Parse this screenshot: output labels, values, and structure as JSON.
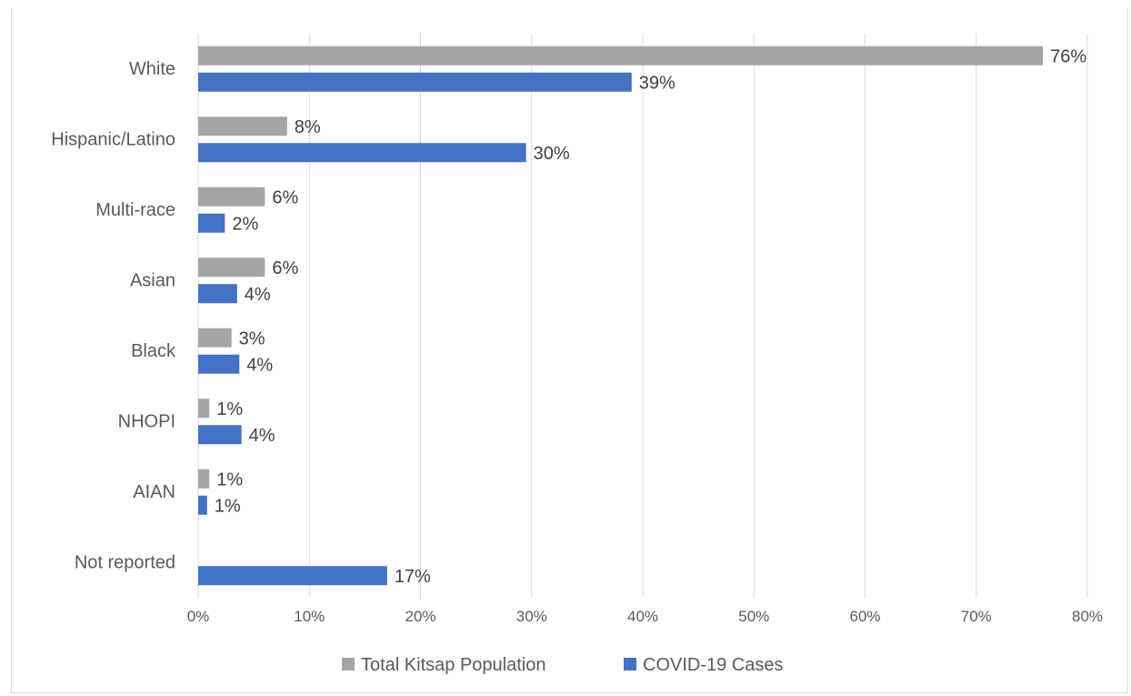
{
  "chart_data": {
    "type": "bar",
    "orientation": "horizontal",
    "categories": [
      "White",
      "Hispanic/Latino",
      "Multi-race",
      "Asian",
      "Black",
      "NHOPI",
      "AIAN",
      "Not reported"
    ],
    "series": [
      {
        "name": "Total Kitsap Population",
        "color": "#a5a5a5",
        "values": [
          76,
          8,
          6,
          6,
          3,
          1,
          1,
          null
        ],
        "labels": [
          "76%",
          "8%",
          "6%",
          "6%",
          "3%",
          "1%",
          "1%",
          ""
        ]
      },
      {
        "name": "COVID-19 Cases",
        "color": "#4472c4",
        "values": [
          39,
          29.5,
          2.4,
          3.5,
          3.7,
          3.9,
          0.8,
          17
        ],
        "labels": [
          "39%",
          "30%",
          "2%",
          "4%",
          "4%",
          "4%",
          "1%",
          "17%"
        ]
      }
    ],
    "x_ticks": [
      "0%",
      "10%",
      "20%",
      "30%",
      "40%",
      "50%",
      "60%",
      "70%",
      "80%"
    ],
    "xlim": [
      0,
      80
    ],
    "grid": true,
    "legend_position": "bottom",
    "gridline_color": "#d9d9d9",
    "text_color": "#595959"
  }
}
